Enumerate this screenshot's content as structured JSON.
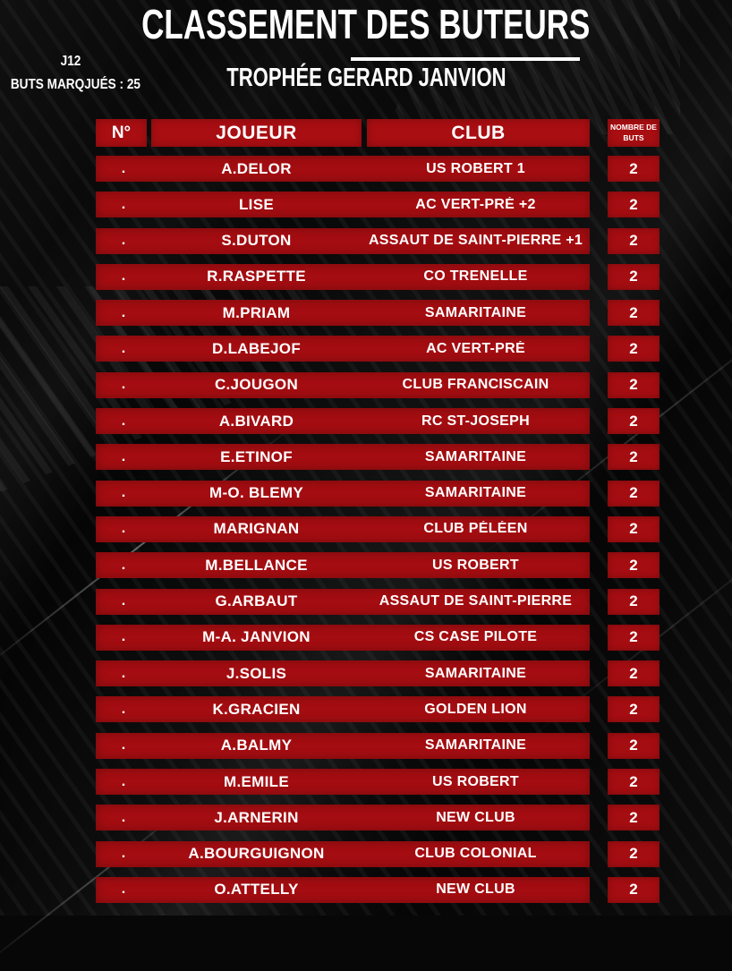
{
  "page": {
    "title": "CLASSEMENT DES BUTEURS",
    "subtitle": "TROPHÉE GERARD JANVION",
    "matchday": "J12",
    "goals_scored_label": "BUTS MARQJUÉS : 25"
  },
  "colors": {
    "cell_red": "#a40d11",
    "header_red": "#a90e12",
    "text_white": "#ffffff",
    "background_black": "#070707"
  },
  "chart_data": {
    "type": "table",
    "title": "CLASSEMENT DES BUTEURS — TROPHÉE GERARD JANVION",
    "matchday": "J12",
    "total_goals": 25,
    "columns": [
      "N°",
      "JOUEUR",
      "CLUB",
      "NOMBRE DE BUTS"
    ],
    "rows": [
      [
        ".",
        "A.DELOR",
        "US ROBERT 1",
        "2"
      ],
      [
        ".",
        "LISE",
        "AC VERT-PRÉ +2",
        "2"
      ],
      [
        ".",
        "S.DUTON",
        "ASSAUT DE SAINT-PIERRE +1",
        "2"
      ],
      [
        ".",
        "R.RASPETTE",
        "CO TRENELLE",
        "2"
      ],
      [
        ".",
        "M.PRIAM",
        "SAMARITAINE",
        "2"
      ],
      [
        ".",
        "D.LABEJOF",
        "AC VERT-PRÉ",
        "2"
      ],
      [
        ".",
        "C.JOUGON",
        "CLUB FRANCISCAIN",
        "2"
      ],
      [
        ".",
        "A.BIVARD",
        "RC ST-JOSEPH",
        "2"
      ],
      [
        ".",
        "E.ETINOF",
        "SAMARITAINE",
        "2"
      ],
      [
        ".",
        "M-O. BLEMY",
        "SAMARITAINE",
        "2"
      ],
      [
        ".",
        "MARIGNAN",
        "CLUB PÉLÉEN",
        "2"
      ],
      [
        ".",
        "M.BELLANCE",
        "US ROBERT",
        "2"
      ],
      [
        ".",
        "G.ARBAUT",
        "ASSAUT DE SAINT-PIERRE",
        "2"
      ],
      [
        ".",
        "M-A. JANVION",
        "CS CASE PILOTE",
        "2"
      ],
      [
        ".",
        "J.SOLIS",
        "SAMARITAINE",
        "2"
      ],
      [
        ".",
        "K.GRACIEN",
        "GOLDEN LION",
        "2"
      ],
      [
        ".",
        "A.BALMY",
        "SAMARITAINE",
        "2"
      ],
      [
        ".",
        "M.EMILE",
        "US ROBERT",
        "2"
      ],
      [
        ".",
        "J.ARNERIN",
        "NEW CLUB",
        "2"
      ],
      [
        ".",
        "A.BOURGUIGNON",
        "CLUB COLONIAL",
        "2"
      ],
      [
        ".",
        "O.ATTELLY",
        "NEW CLUB",
        "2"
      ]
    ]
  }
}
